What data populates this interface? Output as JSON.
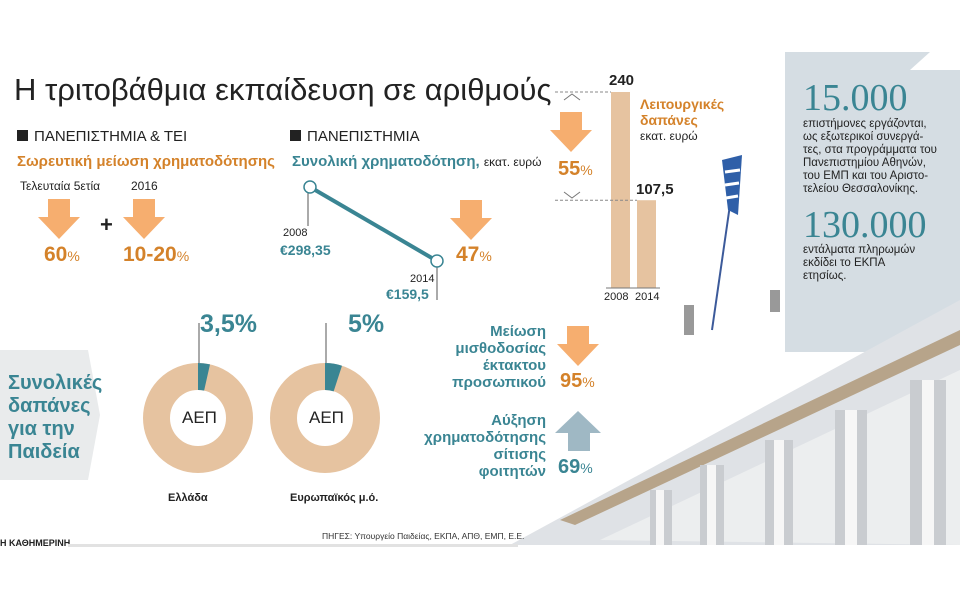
{
  "title": "Η τριτοβάθμια εκπαίδευση σε αριθμούς",
  "colors": {
    "teal": "#3a8593",
    "orange": "#d4822a",
    "arrow_orange": "#f6ae6f",
    "bar": "#e6c3a0",
    "arrow_blue": "#9fb8c4",
    "panel": "#d5dde3"
  },
  "section1": {
    "header": "ΠΑΝΕΠΙΣΤΗΜΙΑ & ΤΕΙ",
    "subtitle": "Σωρευτική μείωση χρηματοδότησης",
    "items": [
      {
        "label": "Τελευταία 5ετία",
        "value": "60",
        "unit": "%"
      },
      {
        "label": "2016",
        "value": "10-20",
        "unit": "%"
      }
    ],
    "plus": "+"
  },
  "section2": {
    "header": "ΠΑΝΕΠΙΣΤΗΜΙΑ",
    "subtitle": "Συνολική χρηματοδότηση,",
    "unit": "εκατ. ευρώ",
    "value": "47",
    "value_unit": "%"
  },
  "section3": {
    "title_line1": "Λειτουργικές",
    "title_line2": "δαπάνες",
    "unit": "εκατ. ευρώ",
    "value": "55",
    "value_unit": "%"
  },
  "facts": [
    {
      "number": "15.000",
      "lines": [
        "επιστήμονες εργάζονται,",
        "ως εξωτερικοί συνεργά-",
        "τες, στα προγράμματα του",
        "Πανεπιστημίου Αθηνών,",
        "του ΕΜΠ και του Αριστο-",
        "τελείου Θεσσαλονίκης."
      ]
    },
    {
      "number": "130.000",
      "lines": [
        "εντάλματα πληρωμών",
        "εκδίδει το ΕΚΠΑ",
        "ετησίως."
      ]
    }
  ],
  "education": {
    "lines": [
      "Συνολικές",
      "δαπάνες",
      "για την",
      "Παιδεία"
    ],
    "center_label": "ΑΕΠ"
  },
  "payroll": {
    "lines": [
      "Μείωση",
      "μισθοδοσίας",
      "έκτακτου",
      "προσωπικού"
    ],
    "value": "95",
    "unit": "%"
  },
  "meals": {
    "lines": [
      "Αύξηση",
      "χρηματοδότησης",
      "σίτισης",
      "φοιτητών"
    ],
    "value": "69",
    "unit": "%"
  },
  "footer": {
    "brand": "Η ΚΑΘΗΜΕΡΙΝΗ",
    "sources": "ΠΗΓΕΣ: Υπουργείο Παιδείας, ΕΚΠΑ, ΑΠΘ, ΕΜΠ, Ε.Ε."
  },
  "chart_data": [
    {
      "type": "line",
      "x": [
        "2008",
        "2014"
      ],
      "values": [
        298.35,
        159.5
      ],
      "labels": [
        "€298,35",
        "€159,5"
      ]
    },
    {
      "type": "bar",
      "categories": [
        "2008",
        "2014"
      ],
      "values": [
        240,
        107.5
      ],
      "labels": [
        "240",
        "107,5"
      ]
    },
    {
      "type": "pie",
      "name": "Ελλάδα",
      "value_label": "3,5%",
      "values": [
        3.5,
        96.5
      ]
    },
    {
      "type": "pie",
      "name": "Ευρωπαϊκός μ.ό.",
      "value_label": "5%",
      "values": [
        5,
        95
      ]
    }
  ]
}
